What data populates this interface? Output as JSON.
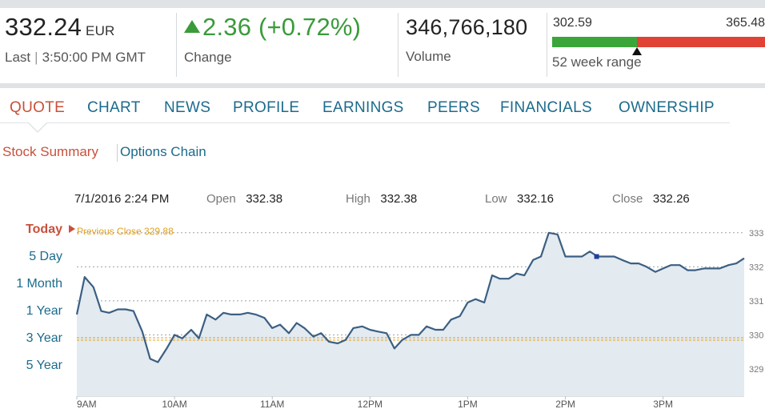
{
  "header": {
    "price": "332.24",
    "currency": "EUR",
    "last_label": "Last",
    "last_time": "3:50:00 PM GMT",
    "change_value": "2.36 (+0.72%)",
    "change_label": "Change",
    "volume_value": "346,766,180",
    "volume_label": "Volume",
    "range_low": "302.59",
    "range_high": "365.48",
    "range_label": "52 week range",
    "range_position": 0.4,
    "colors": {
      "up": "#3a9b3a",
      "range_low_bar": "#3aa63a",
      "range_high_bar": "#e04235"
    }
  },
  "nav": {
    "tabs": [
      {
        "label": "QUOTE",
        "active": true
      },
      {
        "label": "CHART",
        "active": false
      },
      {
        "label": "NEWS",
        "active": false
      },
      {
        "label": "PROFILE",
        "active": false
      },
      {
        "label": "EARNINGS",
        "active": false
      },
      {
        "label": "PEERS",
        "active": false
      },
      {
        "label": "FINANCIALS",
        "active": false
      },
      {
        "label": "OWNERSHIP",
        "active": false
      }
    ],
    "active_color": "#c9503a",
    "link_color": "#1b6b8c"
  },
  "subnav": {
    "items": [
      {
        "label": "Stock Summary",
        "active": true
      },
      {
        "label": "Options Chain",
        "active": false
      }
    ]
  },
  "ohlc": {
    "datetime": "7/1/2016 2:24 PM",
    "open_label": "Open",
    "open_value": "332.38",
    "high_label": "High",
    "high_value": "332.38",
    "low_label": "Low",
    "low_value": "332.16",
    "close_label": "Close",
    "close_value": "332.26"
  },
  "range_links": [
    {
      "label": "Today",
      "active": true
    },
    {
      "label": "5 Day",
      "active": false
    },
    {
      "label": "1 Month",
      "active": false
    },
    {
      "label": "1 Year",
      "active": false
    },
    {
      "label": "3 Year",
      "active": false
    },
    {
      "label": "5 Year",
      "active": false
    }
  ],
  "previous_close_label": "Previous Close 329.88",
  "chart_data": {
    "type": "area",
    "previous_close": 329.88,
    "x_tick_labels": [
      "9AM",
      "10AM",
      "11AM",
      "12PM",
      "1PM",
      "2PM",
      "3PM"
    ],
    "x_ticks_hours": [
      9,
      10,
      11,
      12,
      13,
      14,
      15
    ],
    "x_range_hours": [
      9.0,
      15.83
    ],
    "y_tick_labels": [
      "333",
      "332",
      "331",
      "330",
      "329"
    ],
    "y_ticks": [
      333,
      332,
      331,
      330,
      329
    ],
    "ylim": [
      328.2,
      333.3
    ],
    "grid": "dotted-horizontal",
    "line_color": "#3b5f82",
    "fill_color": "#e3eaf0",
    "prev_close_color": "#e1a01c",
    "selected_point_hour": 14.32,
    "series": [
      {
        "x": [
          9.0,
          9.08,
          9.17,
          9.25,
          9.33,
          9.42,
          9.5,
          9.58,
          9.67,
          9.75,
          9.83,
          9.92,
          10.0,
          10.08,
          10.17,
          10.25,
          10.33,
          10.42,
          10.5,
          10.58,
          10.67,
          10.75,
          10.83,
          10.92,
          11.0,
          11.08,
          11.17,
          11.25,
          11.33,
          11.42,
          11.5,
          11.58,
          11.67,
          11.75,
          11.83,
          11.92,
          12.0,
          12.08,
          12.17,
          12.25,
          12.33,
          12.42,
          12.5,
          12.58,
          12.67,
          12.75,
          12.83,
          12.92,
          13.0,
          13.08,
          13.17,
          13.25,
          13.33,
          13.42,
          13.5,
          13.58,
          13.67,
          13.75,
          13.83,
          13.92,
          14.0,
          14.08,
          14.17,
          14.25,
          14.33,
          14.42,
          14.5,
          14.58,
          14.67,
          14.75,
          14.83,
          14.92,
          15.0,
          15.08,
          15.17,
          15.25,
          15.33,
          15.42,
          15.5,
          15.58,
          15.67,
          15.75,
          15.83
        ],
        "values": [
          330.6,
          331.7,
          331.4,
          330.7,
          330.65,
          330.75,
          330.75,
          330.7,
          330.1,
          329.3,
          329.2,
          329.6,
          330.0,
          329.9,
          330.15,
          329.9,
          330.6,
          330.45,
          330.65,
          330.6,
          330.6,
          330.65,
          330.6,
          330.5,
          330.2,
          330.3,
          330.05,
          330.35,
          330.2,
          329.95,
          330.05,
          329.8,
          329.75,
          329.85,
          330.2,
          330.25,
          330.15,
          330.1,
          330.05,
          329.6,
          329.85,
          330.0,
          330.0,
          330.25,
          330.15,
          330.15,
          330.45,
          330.55,
          330.95,
          331.05,
          330.95,
          331.75,
          331.65,
          331.65,
          331.8,
          331.75,
          332.2,
          332.3,
          333.0,
          332.95,
          332.3,
          332.3,
          332.3,
          332.45,
          332.3,
          332.3,
          332.3,
          332.2,
          332.1,
          332.1,
          332.0,
          331.85,
          331.95,
          332.05,
          332.05,
          331.9,
          331.9,
          331.95,
          331.95,
          331.95,
          332.05,
          332.1,
          332.25
        ]
      }
    ]
  }
}
